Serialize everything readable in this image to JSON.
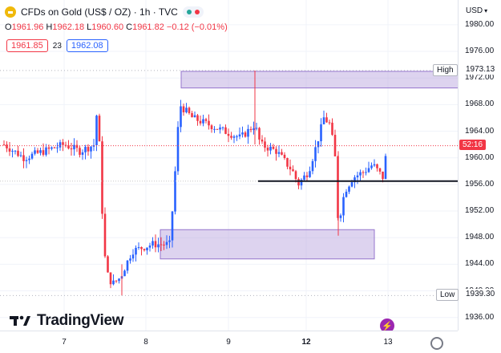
{
  "symbol": {
    "title": "CFDs on Gold (US$ / OZ) · 1h · TVC"
  },
  "ohlc": {
    "o_label": "O",
    "o": "1961.96",
    "h_label": "H",
    "h": "1962.18",
    "l_label": "L",
    "l": "1960.60",
    "c_label": "C",
    "c": "1961.82",
    "change": "−0.12 (−0.01%)"
  },
  "trade": {
    "sell": "1961.85",
    "spread": "23",
    "buy": "1962.08"
  },
  "axis": {
    "currency": "USD",
    "ticks": [
      "1980.00",
      "1976.00",
      "1972.00",
      "1968.00",
      "1964.00",
      "1960.00",
      "1956.00",
      "1952.00",
      "1948.00",
      "1944.00",
      "1940.00",
      "1936.00"
    ]
  },
  "labels": {
    "high_name": "High",
    "high_value": "1973.13",
    "low_name": "Low",
    "low_value": "1939.30",
    "current_value": "52:16"
  },
  "xaxis": {
    "ticks": [
      "7",
      "8",
      "9",
      "12",
      "13"
    ]
  },
  "watermark": {
    "brand": "TradingView"
  },
  "colors": {
    "up": "#2962ff",
    "down": "#f23645",
    "zone": "#b39ddb",
    "level": "#131722"
  },
  "chart_data": {
    "type": "candlestick",
    "title": "CFDs on Gold (US$ / OZ) · 1h · TVC",
    "ylim": [
      1935,
      1983
    ],
    "x_ticks": [
      "7",
      "8",
      "9",
      "12",
      "13"
    ],
    "zones": [
      {
        "from": 1970.5,
        "to": 1973.0
      },
      {
        "from": 1944.8,
        "to": 1949.2
      }
    ],
    "level": 1956.5,
    "high": 1973.13,
    "low": 1939.3,
    "last": 1961.82
  }
}
